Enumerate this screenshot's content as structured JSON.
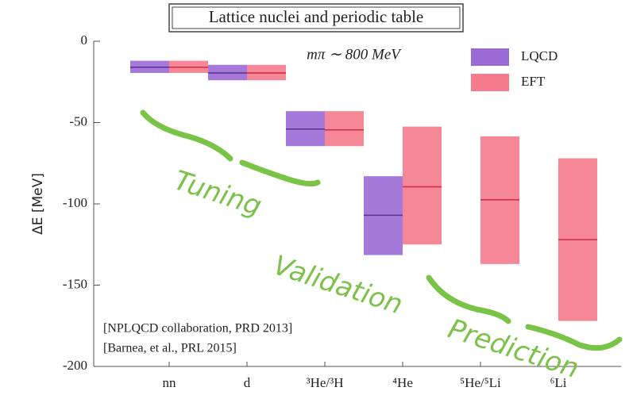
{
  "chart_data": {
    "type": "range-bar",
    "title": "Lattice nuclei and periodic table",
    "annotation": "mπ ∼ 800 MeV",
    "y_label": "ΔE [MeV]",
    "references": [
      "[NPLQCD collaboration, PRD 2013]",
      "[Barnea, et al., PRL 2015]"
    ],
    "handwritten": [
      "Tuning",
      "Validation",
      "Prediction"
    ],
    "categories": [
      "nn",
      "d",
      "³He/³H",
      "⁴He",
      "⁵He/⁵Li",
      "⁶Li"
    ],
    "series": [
      {
        "name": "LQCD",
        "color": "#9a6ad6",
        "line_color": "#5a2f8f",
        "values": [
          -16,
          -19.5,
          -54,
          -107,
          null,
          null
        ],
        "low": [
          -19.5,
          -24,
          -64.5,
          -131.5,
          null,
          null
        ],
        "high": [
          -12,
          -14.5,
          -43,
          -83,
          null,
          null
        ]
      },
      {
        "name": "EFT",
        "color": "#f47a8c",
        "line_color": "#d02a45",
        "values": [
          -16,
          -19.5,
          -54.5,
          -89.5,
          -97.5,
          -122
        ],
        "low": [
          -19.5,
          -24,
          -64.5,
          -125,
          -137,
          -172
        ],
        "high": [
          -12,
          -14.5,
          -43,
          -52.5,
          -58.5,
          -72
        ]
      }
    ],
    "ylim": [
      -200,
      0
    ],
    "yticks": [
      -200,
      -150,
      -100,
      -50,
      0
    ]
  }
}
